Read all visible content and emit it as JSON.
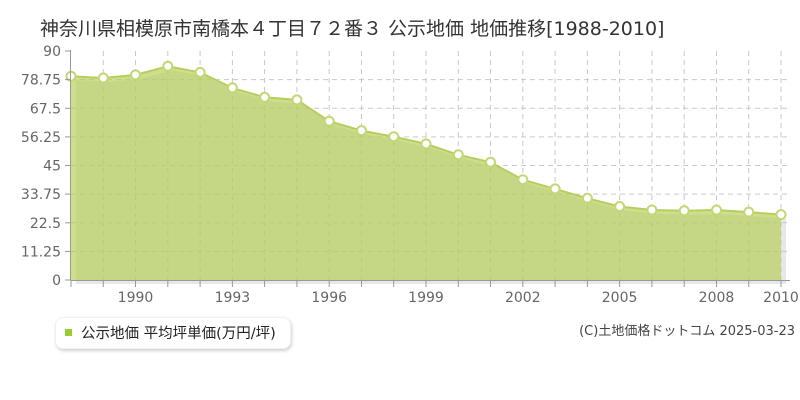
{
  "title": "神奈川県相模原市南橋本４丁目７２番３ 公示地価 地価推移[1988-2010]",
  "legend": {
    "label": "公示地価 平均坪単価(万円/坪)",
    "marker_color": "#9acd32"
  },
  "copyright": "(C)土地価格ドットコム 2025-03-23",
  "chart_data": {
    "type": "area",
    "title": "神奈川県相模原市南橋本４丁目７２番３ 公示地価 地価推移[1988-2010]",
    "series_name": "公示地価 平均坪単価(万円/坪)",
    "x": [
      1988,
      1989,
      1990,
      1991,
      1992,
      1993,
      1994,
      1995,
      1996,
      1997,
      1998,
      1999,
      2000,
      2001,
      2002,
      2003,
      2004,
      2005,
      2006,
      2007,
      2008,
      2009,
      2010
    ],
    "values": [
      80.1,
      79.4,
      80.6,
      84.0,
      81.6,
      75.5,
      71.8,
      70.8,
      62.4,
      58.7,
      56.3,
      53.5,
      49.2,
      46.3,
      39.4,
      35.8,
      32.1,
      28.9,
      27.5,
      27.2,
      27.5,
      26.7,
      25.7
    ],
    "xlabel": "",
    "ylabel": "",
    "ylim": [
      0,
      90
    ],
    "ytick_labels": [
      "0",
      "11.25",
      "22.5",
      "33.75",
      "45",
      "56.25",
      "67.5",
      "78.75",
      "90"
    ],
    "yticks": [
      0,
      11.25,
      22.5,
      33.75,
      45,
      56.25,
      67.5,
      78.75,
      90
    ],
    "xtick_labels": [
      "1990",
      "1993",
      "1996",
      "1999",
      "2002",
      "2005",
      "2008",
      "2010"
    ],
    "xticks": [
      1990,
      1993,
      1996,
      1999,
      2002,
      2005,
      2008,
      2010
    ],
    "grid": "dashed",
    "legend_position": "bottom-left",
    "colors": {
      "area_fill": "rgba(178,205,80,0.65)",
      "line": "#b4cf5e",
      "marker_fill": "#ffffff",
      "marker_stroke": "#c2d876",
      "grid": "#c9c9c9",
      "axis": "#999999",
      "tick_text": "#666666",
      "shadow": "rgba(0,0,0,0.09)"
    }
  }
}
